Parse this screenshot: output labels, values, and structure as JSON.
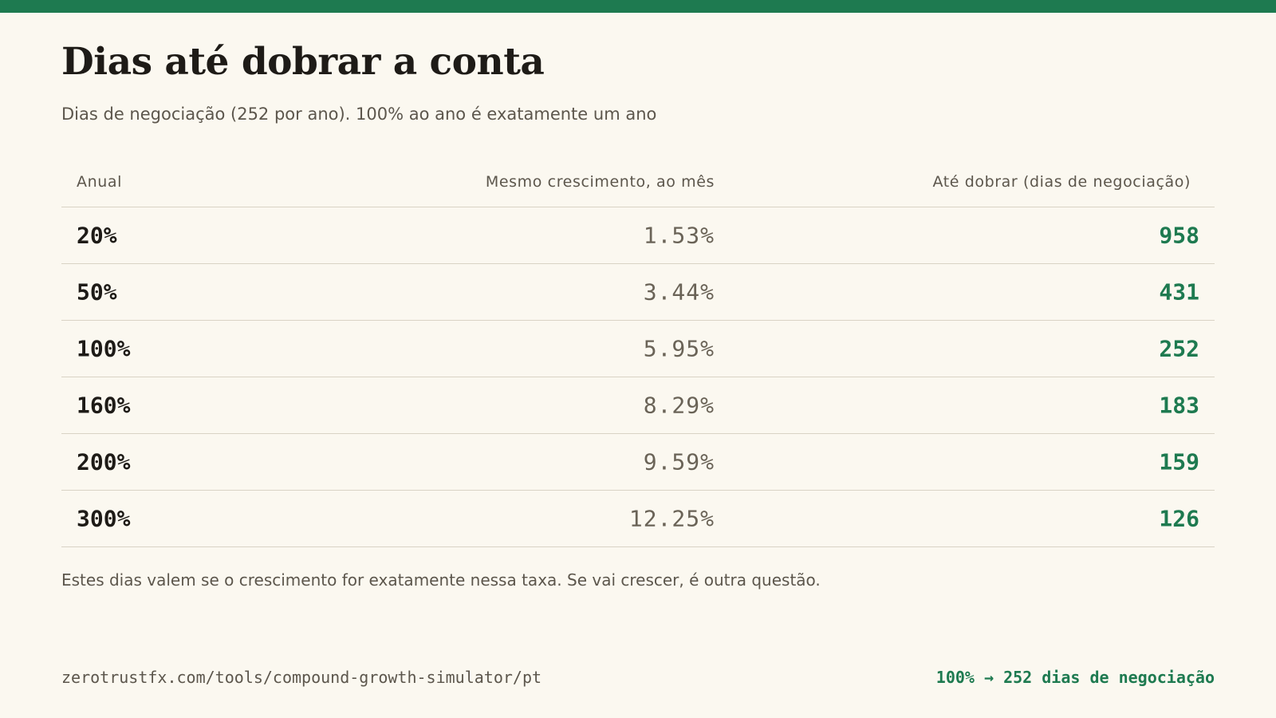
{
  "title": "Dias até dobrar a conta",
  "subtitle": "Dias de negociação (252 por ano). 100% ao ano é exatamente um ano",
  "table": {
    "headers": {
      "annual": "Anual",
      "monthly": "Mesmo crescimento, ao mês",
      "days": "Até dobrar (dias de negociação)"
    },
    "rows": [
      {
        "annual": "20%",
        "monthly": "1.53%",
        "days": "958"
      },
      {
        "annual": "50%",
        "monthly": "3.44%",
        "days": "431"
      },
      {
        "annual": "100%",
        "monthly": "5.95%",
        "days": "252"
      },
      {
        "annual": "160%",
        "monthly": "8.29%",
        "days": "183"
      },
      {
        "annual": "200%",
        "monthly": "9.59%",
        "days": "159"
      },
      {
        "annual": "300%",
        "monthly": "12.25%",
        "days": "126"
      }
    ]
  },
  "note": "Estes dias valem se o crescimento for exatamente nessa taxa. Se vai crescer, é outra questão.",
  "footer": {
    "url": "zerotrustfx.com/tools/compound-growth-simulator/pt",
    "badge": "100% → 252 dias de negociação"
  },
  "colors": {
    "accent": "#1e7a50",
    "background": "#fbf8f0",
    "text": "#1e1b17",
    "muted": "#5c564c"
  }
}
